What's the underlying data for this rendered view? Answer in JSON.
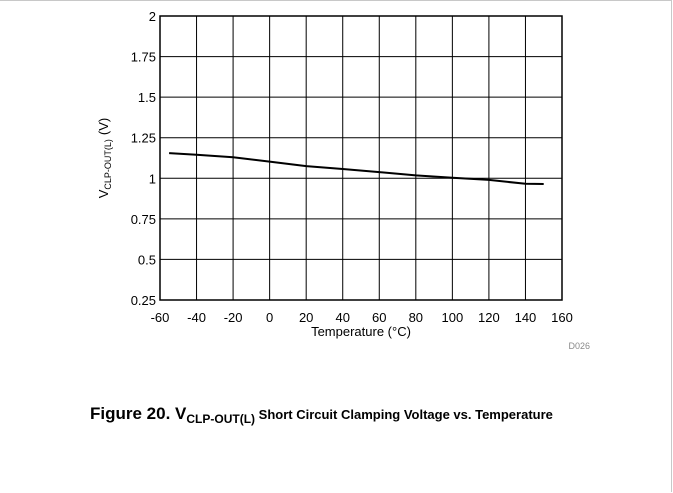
{
  "chart_data": {
    "type": "line",
    "x": [
      -55,
      -40,
      -20,
      0,
      20,
      40,
      60,
      80,
      100,
      120,
      140,
      150
    ],
    "series": [
      {
        "values": [
          1.155,
          1.145,
          1.13,
          1.103,
          1.075,
          1.057,
          1.038,
          1.018,
          1.003,
          0.99,
          0.966,
          0.965
        ],
        "color": "#000000"
      }
    ],
    "xlabel": "Temperature (°C)",
    "ylabel_main": "V",
    "ylabel_sub": "CLP-OUT(L)",
    "ylabel_unit": "(V)",
    "xlim": [
      -60,
      160
    ],
    "ylim": [
      0.25,
      2
    ],
    "xticks": [
      -60,
      -40,
      -20,
      0,
      20,
      40,
      60,
      80,
      100,
      120,
      140,
      160
    ],
    "xtick_labels": [
      "-60",
      "-40",
      "-20",
      "0",
      "20",
      "40",
      "60",
      "80",
      "100",
      "120",
      "140",
      "160"
    ],
    "yticks": [
      0.25,
      0.5,
      0.75,
      1,
      1.25,
      1.5,
      1.75,
      2
    ],
    "ytick_labels": [
      "0.25",
      "0.5",
      "0.75",
      "1",
      "1.25",
      "1.5",
      "1.75",
      "2"
    ],
    "grid": true,
    "legend": "none"
  },
  "figure_id": "D026",
  "caption": {
    "prefix": "Figure 20. V",
    "subscript": "CLP-OUT(L)",
    "rest": " Short Circuit Clamping Voltage vs. Temperature"
  }
}
